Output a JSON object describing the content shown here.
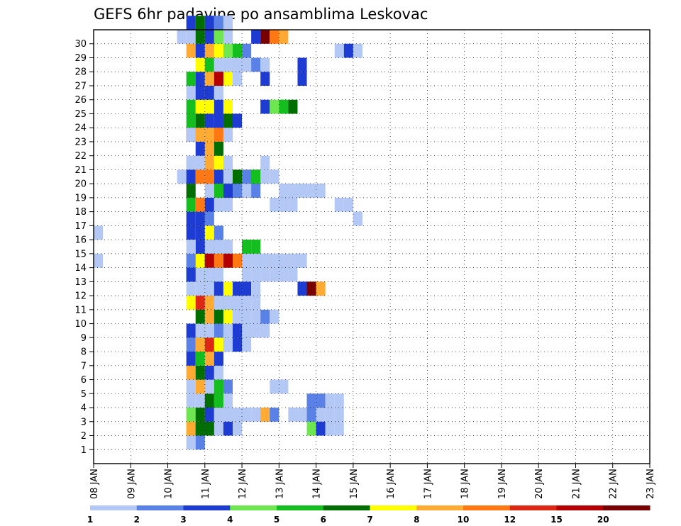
{
  "chart_data": {
    "type": "heatmap",
    "title": "GEFS 6hr padavine po ansamblima Leskovac",
    "x_tick_labels": [
      "08 JAN",
      "09 JAN",
      "10 JAN",
      "11 JAN",
      "12 JAN",
      "13 JAN",
      "14 JAN",
      "15 JAN",
      "16 JAN",
      "17 JAN",
      "18 JAN",
      "19 JAN",
      "20 JAN",
      "21 JAN",
      "22 JAN",
      "23 JAN"
    ],
    "y_tick_labels": [
      "1",
      "2",
      "3",
      "4",
      "5",
      "6",
      "7",
      "8",
      "9",
      "10",
      "11",
      "12",
      "13",
      "14",
      "15",
      "16",
      "17",
      "18",
      "19",
      "20",
      "21",
      "22",
      "23",
      "24",
      "25",
      "26",
      "27",
      "28",
      "29",
      "30"
    ],
    "xlim": [
      "08 JAN 00z",
      "23 JAN 00z"
    ],
    "ylim": [
      0,
      30
    ],
    "grid": true,
    "colorbar": {
      "placement": "bottom",
      "tick_labels": [
        "1",
        "2",
        "3",
        "4",
        "5",
        "6",
        "7",
        "8",
        "10",
        "12",
        "15",
        "20"
      ],
      "colors": [
        "#b4c8f5",
        "#5a82e6",
        "#1e3cd2",
        "#6ee650",
        "#14be1e",
        "#006e00",
        "#ffff00",
        "#ffaa32",
        "#ff7814",
        "#dc2814",
        "#b40000",
        "#780000"
      ]
    },
    "cell_value_unit": "color bin index (0 = lowest band 1-2, 11 = above 20)",
    "cells": [
      [
        2,
        0,
        10,
        6
      ],
      [
        2,
        0,
        11,
        2
      ],
      [
        2,
        0,
        12,
        2
      ],
      [
        1,
        1,
        10,
        0
      ],
      [
        1,
        1,
        11,
        1
      ],
      [
        2,
        1,
        10,
        7
      ],
      [
        2,
        1,
        11,
        5
      ],
      [
        2,
        1,
        12,
        5
      ],
      [
        2,
        1,
        13,
        0
      ],
      [
        2,
        1,
        14,
        2
      ],
      [
        2,
        1,
        15,
        0
      ],
      [
        3,
        1,
        10,
        3
      ],
      [
        3,
        1,
        11,
        5
      ],
      [
        3,
        1,
        12,
        2
      ],
      [
        3,
        1,
        13,
        0
      ],
      [
        3,
        1,
        14,
        0
      ],
      [
        4,
        1,
        10,
        0
      ],
      [
        4,
        1,
        11,
        0
      ],
      [
        4,
        1,
        12,
        5
      ],
      [
        4,
        1,
        13,
        4
      ],
      [
        5,
        1,
        10,
        0
      ],
      [
        5,
        1,
        11,
        7
      ],
      [
        5,
        1,
        12,
        0
      ],
      [
        5,
        1,
        13,
        4
      ],
      [
        5,
        1,
        14,
        1
      ],
      [
        6,
        1,
        10,
        7
      ],
      [
        6,
        1,
        11,
        5
      ],
      [
        6,
        1,
        12,
        2
      ],
      [
        6,
        1,
        13,
        0
      ],
      [
        7,
        1,
        10,
        2
      ],
      [
        7,
        1,
        11,
        4
      ],
      [
        7,
        1,
        12,
        7
      ],
      [
        7,
        1,
        13,
        2
      ],
      [
        8,
        1,
        10,
        1
      ],
      [
        8,
        1,
        11,
        7
      ],
      [
        8,
        1,
        12,
        9
      ],
      [
        8,
        1,
        13,
        6
      ],
      [
        8,
        1,
        14,
        4
      ],
      [
        8,
        1,
        15,
        4
      ],
      [
        8,
        1,
        16,
        0
      ],
      [
        9,
        1,
        10,
        2
      ],
      [
        9,
        1,
        11,
        4
      ],
      [
        9,
        1,
        12,
        7
      ],
      [
        9,
        1,
        13,
        1
      ],
      [
        10,
        1,
        11,
        5
      ],
      [
        10,
        1,
        12,
        7
      ],
      [
        10,
        1,
        13,
        5
      ],
      [
        10,
        1,
        14,
        6
      ],
      [
        10,
        1,
        15,
        2
      ],
      [
        11,
        1,
        10,
        6
      ],
      [
        11,
        1,
        11,
        9
      ],
      [
        11,
        1,
        12,
        7
      ],
      [
        11,
        1,
        13,
        4
      ],
      [
        11,
        1,
        14,
        4
      ],
      [
        11,
        1,
        15,
        1
      ],
      [
        12,
        1,
        10,
        0
      ],
      [
        12,
        1,
        11,
        0
      ],
      [
        12,
        1,
        12,
        0
      ],
      [
        12,
        1,
        13,
        2
      ],
      [
        12,
        1,
        14,
        6
      ],
      [
        12,
        1,
        15,
        2
      ],
      [
        12,
        1,
        16,
        2
      ],
      [
        12,
        1,
        17,
        0
      ],
      [
        13,
        1,
        10,
        4
      ],
      [
        13,
        1,
        11,
        0
      ],
      [
        13,
        1,
        12,
        4
      ],
      [
        13,
        1,
        13,
        0
      ],
      [
        14,
        1,
        10,
        0
      ],
      [
        14,
        1,
        11,
        6
      ],
      [
        14,
        1,
        12,
        9
      ],
      [
        14,
        1,
        13,
        5
      ],
      [
        14,
        1,
        14,
        4
      ],
      [
        14,
        1,
        15,
        0
      ],
      [
        14,
        1,
        16,
        4
      ],
      [
        15,
        1,
        11,
        2
      ],
      [
        15,
        1,
        12,
        2
      ],
      [
        15,
        1,
        13,
        0
      ],
      [
        15,
        1,
        14,
        0
      ],
      [
        16,
        1,
        10,
        2
      ],
      [
        16,
        1,
        11,
        2
      ],
      [
        16,
        1,
        12,
        6
      ],
      [
        16,
        1,
        13,
        1
      ],
      [
        17,
        1,
        10,
        2
      ],
      [
        17,
        1,
        11,
        2
      ],
      [
        17,
        1,
        12,
        1
      ],
      [
        18,
        1,
        10,
        4
      ],
      [
        18,
        1,
        11,
        8
      ],
      [
        18,
        1,
        12,
        2
      ],
      [
        19,
        1,
        10,
        5
      ],
      [
        19,
        1,
        12,
        0
      ],
      [
        19,
        1,
        13,
        0
      ],
      [
        19,
        1,
        14,
        1
      ],
      [
        19,
        1,
        15,
        1
      ],
      [
        19,
        1,
        16,
        1
      ],
      [
        20,
        1,
        9,
        0
      ],
      [
        20,
        1,
        10,
        2
      ],
      [
        20,
        1,
        11,
        8
      ],
      [
        20,
        1,
        12,
        8
      ],
      [
        20,
        1,
        13,
        2
      ],
      [
        20,
        1,
        14,
        2
      ],
      [
        20,
        1,
        15,
        3
      ],
      [
        21,
        1,
        10,
        0
      ],
      [
        21,
        1,
        11,
        0
      ],
      [
        21,
        1,
        12,
        7
      ],
      [
        21,
        1,
        13,
        6
      ],
      [
        21,
        1,
        14,
        0
      ],
      [
        22,
        1,
        11,
        2
      ],
      [
        22,
        1,
        12,
        7
      ],
      [
        22,
        1,
        13,
        5
      ],
      [
        23,
        1,
        10,
        11
      ],
      [
        23,
        1,
        11,
        7
      ],
      [
        23,
        1,
        12,
        7
      ],
      [
        23,
        1,
        13,
        8
      ],
      [
        23,
        1,
        14,
        0
      ],
      [
        24,
        1,
        10,
        4
      ],
      [
        24,
        1,
        11,
        5
      ],
      [
        24,
        1,
        12,
        2
      ],
      [
        24,
        1,
        13,
        2
      ],
      [
        24,
        1,
        14,
        5
      ],
      [
        24,
        1,
        15,
        2
      ],
      [
        25,
        1,
        10,
        4
      ],
      [
        25,
        1,
        11,
        6
      ],
      [
        25,
        1,
        12,
        6
      ],
      [
        25,
        1,
        13,
        2
      ],
      [
        25,
        1,
        14,
        6
      ],
      [
        26,
        1,
        10,
        0
      ],
      [
        26,
        1,
        11,
        2
      ],
      [
        26,
        1,
        12,
        2
      ],
      [
        26,
        1,
        13,
        0
      ],
      [
        27,
        1,
        10,
        4
      ],
      [
        27,
        1,
        11,
        2
      ],
      [
        27,
        1,
        12,
        6
      ],
      [
        27,
        1,
        13,
        2
      ],
      [
        27,
        1,
        14,
        2
      ],
      [
        27,
        1,
        15,
        0
      ],
      [
        28,
        1,
        11,
        6
      ],
      [
        28,
        1,
        12,
        4
      ],
      [
        28,
        1,
        13,
        0
      ],
      [
        28,
        1,
        14,
        0
      ],
      [
        29,
        1,
        10,
        7
      ],
      [
        29,
        1,
        11,
        2
      ],
      [
        29,
        1,
        12,
        7
      ],
      [
        29,
        1,
        13,
        6
      ],
      [
        29,
        1,
        14,
        3
      ],
      [
        29,
        1,
        15,
        4
      ],
      [
        29,
        1,
        16,
        1
      ],
      [
        30,
        1,
        9,
        0
      ],
      [
        30,
        1,
        10,
        0
      ],
      [
        30,
        1,
        11,
        5
      ],
      [
        30,
        1,
        12,
        2
      ],
      [
        30,
        1,
        13,
        3
      ],
      [
        30,
        1,
        14,
        0
      ],
      [
        31,
        1,
        10,
        2
      ],
      [
        31,
        1,
        11,
        5
      ],
      [
        31,
        1,
        12,
        2
      ],
      [
        31,
        1,
        13,
        1
      ],
      [
        31,
        1,
        14,
        0
      ],
      [
        23,
        5,
        10,
        0
      ],
      [
        21,
        6,
        10,
        0
      ],
      [
        13,
        7,
        10,
        2
      ],
      [
        14,
        7,
        10,
        1
      ],
      [
        15,
        7,
        10,
        0
      ],
      [
        9,
        7,
        11,
        0
      ],
      [
        9,
        7,
        12,
        0
      ],
      [
        13,
        7,
        12,
        0
      ],
      [
        14,
        7,
        12,
        1
      ],
      [
        15,
        7,
        12,
        0
      ],
      [
        14,
        7,
        13,
        0
      ],
      [
        14,
        7,
        14,
        0
      ],
      [
        4,
        7,
        13,
        4
      ],
      [
        4,
        7,
        14,
        0
      ],
      [
        3,
        8,
        13,
        0
      ],
      [
        9,
        7,
        18,
        0
      ],
      [
        3,
        8,
        18,
        0
      ],
      [
        20,
        8,
        14,
        0
      ],
      [
        20,
        8,
        15,
        5
      ],
      [
        20,
        8,
        16,
        1
      ],
      [
        19,
        8,
        15,
        2
      ],
      [
        19,
        8,
        16,
        0
      ],
      [
        20,
        8,
        19,
        0
      ],
      [
        8,
        8,
        14,
        0
      ],
      [
        8,
        8,
        15,
        2
      ],
      [
        9,
        8,
        14,
        0
      ],
      [
        9,
        8,
        15,
        2
      ],
      [
        9,
        8,
        16,
        0
      ],
      [
        9,
        8,
        17,
        0
      ],
      [
        20,
        9,
        16,
        1
      ],
      [
        20,
        9,
        17,
        2
      ],
      [
        11,
        10,
        13,
        0
      ],
      [
        11,
        10,
        14,
        0
      ],
      [
        11,
        10,
        15,
        0
      ],
      [
        11,
        10,
        16,
        0
      ],
      [
        11,
        10,
        17,
        0
      ],
      [
        15,
        10,
        16,
        4
      ],
      [
        15,
        10,
        17,
        4
      ],
      [
        3,
        10,
        15,
        0
      ],
      [
        3,
        10,
        16,
        0
      ],
      [
        3,
        10,
        17,
        0
      ],
      [
        3,
        10,
        18,
        7
      ],
      [
        3,
        10,
        19,
        1
      ],
      [
        10,
        10,
        15,
        0
      ],
      [
        10,
        10,
        16,
        0
      ],
      [
        10,
        10,
        17,
        0
      ],
      [
        10,
        10,
        18,
        1
      ],
      [
        10,
        10,
        19,
        0
      ],
      [
        18,
        10,
        19,
        0
      ],
      [
        18,
        10,
        20,
        0
      ],
      [
        18,
        10,
        21,
        0
      ],
      [
        25,
        10,
        18,
        2
      ],
      [
        25,
        10,
        19,
        3
      ],
      [
        25,
        10,
        20,
        4
      ],
      [
        25,
        10,
        21,
        5
      ],
      [
        27,
        10,
        15,
        0
      ],
      [
        27,
        10,
        18,
        2
      ],
      [
        28,
        10,
        15,
        0
      ],
      [
        27,
        11,
        12,
        7
      ],
      [
        27,
        11,
        13,
        10
      ],
      [
        27,
        11,
        14,
        6
      ],
      [
        27,
        11,
        15,
        0
      ],
      [
        27,
        11,
        22,
        2
      ],
      [
        28,
        11,
        22,
        2
      ],
      [
        28,
        12,
        16,
        0
      ],
      [
        28,
        12,
        17,
        1
      ],
      [
        28,
        12,
        18,
        0
      ],
      [
        5,
        12,
        19,
        0
      ],
      [
        5,
        12,
        20,
        0
      ],
      [
        9,
        12,
        16,
        0
      ],
      [
        9,
        12,
        17,
        0
      ],
      [
        14,
        12,
        14,
        4
      ],
      [
        14,
        12,
        15,
        3
      ],
      [
        14,
        12,
        18,
        1
      ],
      [
        14,
        12,
        19,
        8
      ],
      [
        14,
        12,
        20,
        7
      ],
      [
        14,
        12,
        21,
        4
      ],
      [
        14,
        12,
        22,
        2
      ],
      [
        14,
        13,
        12,
        10
      ],
      [
        14,
        13,
        13,
        8
      ],
      [
        14,
        13,
        14,
        10
      ],
      [
        14,
        13,
        15,
        8
      ],
      [
        14,
        13,
        16,
        0
      ],
      [
        14,
        13,
        17,
        0
      ],
      [
        14,
        13,
        18,
        0
      ],
      [
        14,
        13,
        19,
        0
      ],
      [
        14,
        13,
        20,
        0
      ],
      [
        14,
        13,
        21,
        0
      ],
      [
        14,
        13,
        22,
        0
      ],
      [
        13,
        13,
        16,
        0
      ],
      [
        13,
        13,
        17,
        0
      ],
      [
        13,
        13,
        18,
        0
      ],
      [
        13,
        13,
        19,
        0
      ],
      [
        13,
        13,
        20,
        0
      ],
      [
        13,
        13,
        21,
        0
      ],
      [
        19,
        12,
        22,
        3
      ],
      [
        18,
        13,
        13,
        0
      ],
      [
        18,
        13,
        14,
        0
      ],
      [
        19,
        13,
        13,
        4
      ],
      [
        19,
        13,
        14,
        2
      ],
      [
        19,
        13,
        15,
        1
      ],
      [
        19,
        13,
        16,
        0
      ],
      [
        19,
        13,
        17,
        1
      ],
      [
        20,
        13,
        17,
        4
      ],
      [
        20,
        13,
        18,
        0
      ],
      [
        21,
        13,
        18,
        0
      ],
      [
        3,
        13,
        22,
        0
      ],
      [
        2,
        13,
        23,
        3
      ],
      [
        2,
        13,
        24,
        2
      ],
      [
        2,
        13,
        25,
        0
      ],
      [
        2,
        13,
        26,
        0
      ],
      [
        4,
        13,
        23,
        1
      ],
      [
        4,
        13,
        24,
        1
      ],
      [
        4,
        13,
        25,
        0
      ],
      [
        4,
        13,
        26,
        0
      ],
      [
        18,
        13,
        26,
        0
      ],
      [
        18,
        13,
        27,
        0
      ],
      [
        17,
        13,
        28,
        0
      ],
      [
        29,
        13,
        26,
        0
      ],
      [
        29,
        13,
        27,
        2
      ],
      [
        29,
        13,
        28,
        0
      ],
      [
        30,
        14,
        17,
        2
      ],
      [
        30,
        14,
        18,
        11
      ],
      [
        30,
        14,
        19,
        8
      ],
      [
        30,
        14,
        20,
        7
      ],
      [
        16,
        14,
        0,
        0
      ],
      [
        14,
        14,
        0,
        0
      ],
      [
        3,
        14,
        21,
        0
      ],
      [
        3,
        14,
        22,
        0
      ],
      [
        3,
        14,
        23,
        1
      ],
      [
        3,
        14,
        24,
        0
      ],
      [
        3,
        14,
        25,
        0
      ],
      [
        3,
        14,
        26,
        0
      ],
      [
        12,
        14,
        22,
        2
      ],
      [
        12,
        14,
        23,
        11
      ],
      [
        12,
        14,
        24,
        7
      ],
      [
        19,
        14,
        20,
        0
      ],
      [
        19,
        14,
        21,
        0
      ],
      [
        19,
        14,
        22,
        0
      ],
      [
        19,
        14,
        23,
        0
      ],
      [
        19,
        14,
        24,
        0
      ]
    ]
  }
}
